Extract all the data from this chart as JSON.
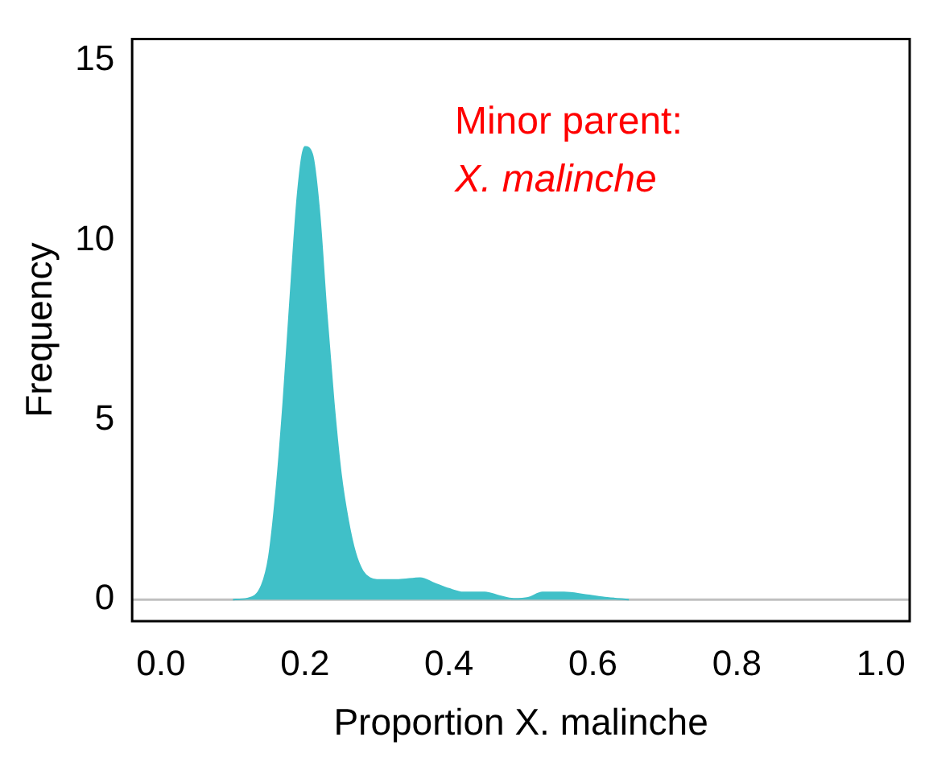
{
  "chart_data": {
    "type": "area",
    "xlabel": "Proportion X. malinche",
    "ylabel": "Frequency",
    "annotations": [
      "Minor parent:",
      "X. malinche"
    ],
    "series": [
      {
        "color": "#40c0c8",
        "x": [
          0.1,
          0.12,
          0.14,
          0.15,
          0.16,
          0.17,
          0.18,
          0.19,
          0.2,
          0.21,
          0.22,
          0.23,
          0.24,
          0.25,
          0.26,
          0.27,
          0.28,
          0.29,
          0.3,
          0.33,
          0.36,
          0.38,
          0.4,
          0.42,
          0.45,
          0.47,
          0.49,
          0.51,
          0.53,
          0.56,
          0.59,
          0.62,
          0.65
        ],
        "values": [
          0,
          0.03,
          0.4,
          1.2,
          3,
          5.5,
          8.5,
          11.3,
          12.6,
          12.4,
          10.8,
          8,
          5.5,
          3.5,
          2.2,
          1.3,
          0.8,
          0.6,
          0.55,
          0.55,
          0.6,
          0.45,
          0.3,
          0.2,
          0.2,
          0.1,
          0.02,
          0.05,
          0.2,
          0.2,
          0.13,
          0.05,
          0
        ]
      }
    ],
    "xlim": [
      -0.04,
      1.04
    ],
    "xticks": [
      {
        "value": 0,
        "label": "0.0"
      },
      0.2,
      0.4,
      0.6,
      0.8,
      {
        "value": 1,
        "label": "1.0"
      }
    ],
    "ylim": [
      -0.6,
      15.6
    ],
    "yticks": [
      0,
      5,
      10,
      15
    ],
    "grid": false,
    "legend": false,
    "ref_lines": [
      {
        "axis": "y",
        "value": 0,
        "color": "#c0c0c0"
      }
    ]
  }
}
